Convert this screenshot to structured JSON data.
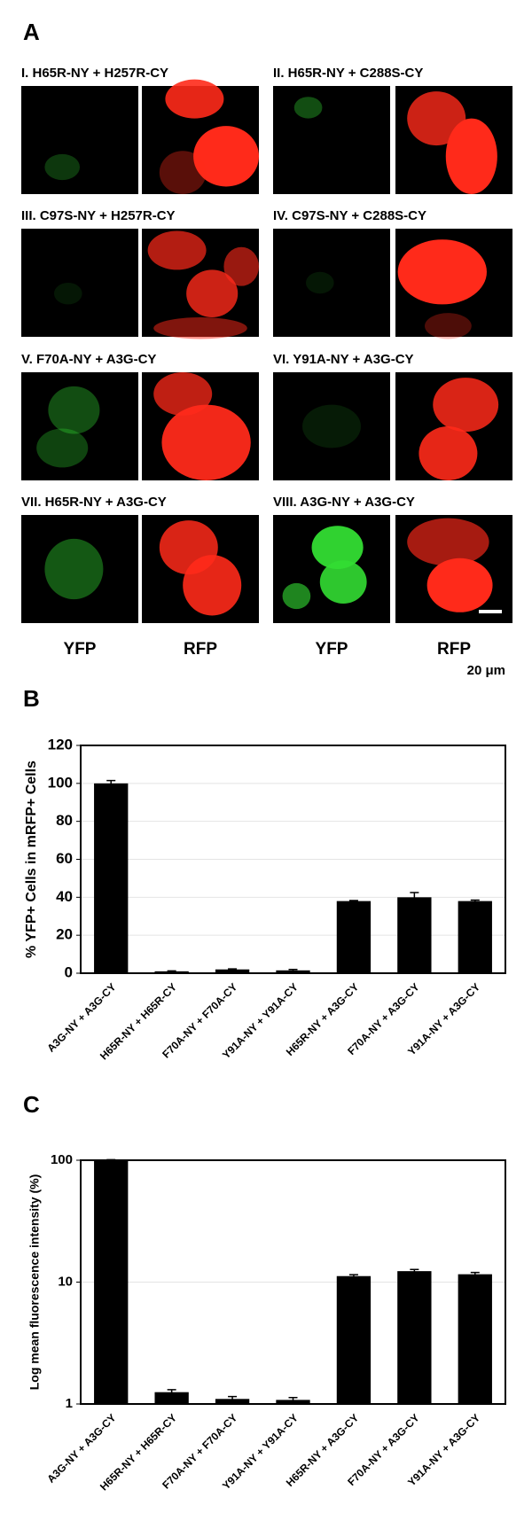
{
  "panel_a": {
    "label": "A",
    "panels": [
      {
        "title": "I. H65R-NY + H257R-CY"
      },
      {
        "title": "II. H65R-NY + C288S-CY"
      },
      {
        "title": "III. C97S-NY + H257R-CY"
      },
      {
        "title": "IV. C97S-NY + C288S-CY"
      },
      {
        "title": "V. F70A-NY + A3G-CY"
      },
      {
        "title": "VI. Y91A-NY + A3G-CY"
      },
      {
        "title": "VII. H65R-NY + A3G-CY"
      },
      {
        "title": "VIII. A3G-NY + A3G-CY"
      }
    ],
    "channel_labels": [
      "YFP",
      "RFP",
      "YFP",
      "RFP"
    ],
    "scale_bar": "20 μm"
  },
  "chart_data": [
    {
      "type": "bar",
      "panel_label": "B",
      "ylabel": "% YFP+ Cells in mRFP+ Cells",
      "categories": [
        "A3G-NY + A3G-CY",
        "H65R-NY + H65R-CY",
        "F70A-NY + F70A-CY",
        "Y91A-NY + Y91A-CY",
        "H65R-NY + A3G-CY",
        "F70A-NY + A3G-CY",
        "Y91A-NY + A3G-CY"
      ],
      "values": [
        100,
        1,
        2,
        1.5,
        38,
        40,
        38
      ],
      "errors": [
        1.5,
        0.2,
        0.3,
        0.5,
        0.3,
        2.5,
        0.5
      ],
      "color": "#000000",
      "ylim": [
        0,
        120
      ],
      "yticks": [
        0,
        20,
        40,
        60,
        80,
        100,
        120
      ],
      "grid": true,
      "log_scale": false
    },
    {
      "type": "bar",
      "panel_label": "C",
      "ylabel": "Log mean fluorescence intensity (%)",
      "categories": [
        "A3G-NY + A3G-CY",
        "H65R-NY + H65R-CY",
        "F70A-NY + F70A-CY",
        "Y91A-NY + Y91A-CY",
        "H65R-NY + A3G-CY",
        "F70A-NY + A3G-CY",
        "Y91A-NY + A3G-CY"
      ],
      "values": [
        100,
        1.25,
        1.1,
        1.08,
        11.2,
        12.3,
        11.6
      ],
      "errors": [
        1,
        0.06,
        0.05,
        0.05,
        0.3,
        0.4,
        0.4
      ],
      "color": "#000000",
      "ylim": [
        1,
        100
      ],
      "yticks": [
        1,
        10,
        100
      ],
      "grid": true,
      "log_scale": true
    }
  ]
}
